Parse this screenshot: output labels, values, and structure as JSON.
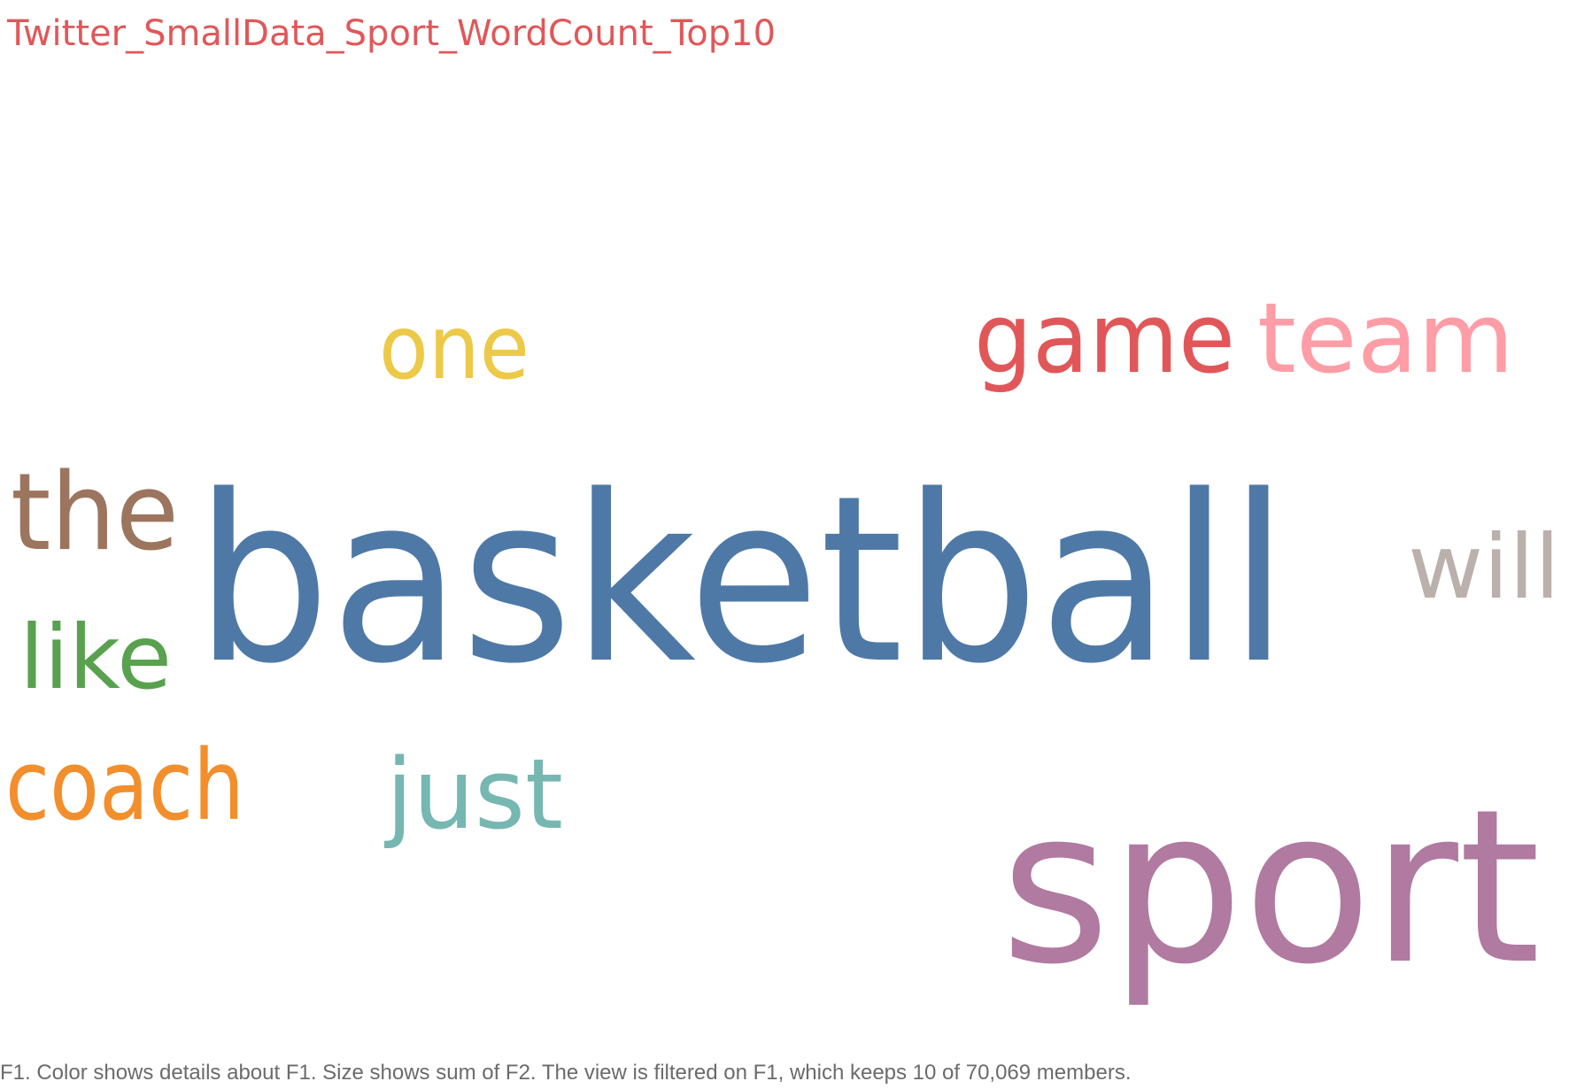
{
  "chart_data": {
    "type": "wordcloud",
    "title": "Twitter_SmallData_Sport_WordCount_Top10",
    "title_color": "#e15759",
    "color_field": "F1",
    "size_field": "F2",
    "words": [
      {
        "text": "basketball",
        "color": "#4e79a7",
        "relative_size": 1.0
      },
      {
        "text": "sport",
        "color": "#b07aa1",
        "relative_size": 0.95
      },
      {
        "text": "game",
        "color": "#e15759",
        "relative_size": 0.55
      },
      {
        "text": "team",
        "color": "#ff9da7",
        "relative_size": 0.55
      },
      {
        "text": "the",
        "color": "#9c755f",
        "relative_size": 0.52
      },
      {
        "text": "coach",
        "color": "#f28e2b",
        "relative_size": 0.5
      },
      {
        "text": "just",
        "color": "#76b7b2",
        "relative_size": 0.5
      },
      {
        "text": "one",
        "color": "#edc948",
        "relative_size": 0.46
      },
      {
        "text": "like",
        "color": "#59a14f",
        "relative_size": 0.46
      },
      {
        "text": "will",
        "color": "#bab0ac",
        "relative_size": 0.46
      }
    ]
  },
  "caption": "F1.  Color shows details about F1.  Size shows sum of F2. The view is filtered on F1, which keeps 10 of 70,069 members."
}
